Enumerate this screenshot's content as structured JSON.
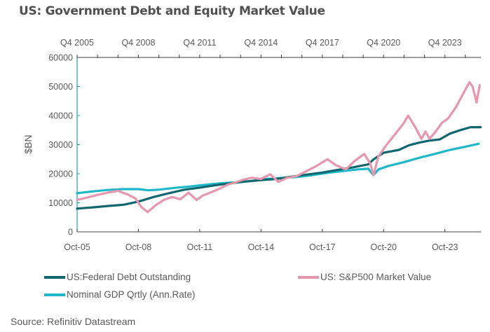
{
  "title": "US: Government Debt and Equity Market Value",
  "source": "Source: Refinitiv Datastream",
  "colors": {
    "federal_debt": "#11676e",
    "sp500": "#e597ae",
    "gdp": "#1fb8c8",
    "axis": "#404040",
    "y_axis_line": "#2a9aa6"
  },
  "chart_data": {
    "type": "line",
    "title": "US: Government Debt and Equity Market Value",
    "xlabel": "",
    "ylabel": "$BN",
    "ylim": [
      0,
      60000
    ],
    "yticks": [
      0,
      10000,
      20000,
      30000,
      40000,
      50000,
      60000
    ],
    "xlim_years": [
      2005.75,
      2025.5
    ],
    "bottom_x_ticks": [
      {
        "label": "Oct-05",
        "year": 2005.75
      },
      {
        "label": "Oct-08",
        "year": 2008.75
      },
      {
        "label": "Oct-11",
        "year": 2011.75
      },
      {
        "label": "Oct-14",
        "year": 2014.75
      },
      {
        "label": "Oct-17",
        "year": 2017.75
      },
      {
        "label": "Oct-20",
        "year": 2020.75
      },
      {
        "label": "Oct-23",
        "year": 2023.75
      }
    ],
    "top_x_ticks": [
      {
        "label": "Q4 2005",
        "year": 2005.75
      },
      {
        "label": "Q4 2008",
        "year": 2008.75
      },
      {
        "label": "Q4 2011",
        "year": 2011.75
      },
      {
        "label": "Q4 2014",
        "year": 2014.75
      },
      {
        "label": "Q4 2017",
        "year": 2017.75
      },
      {
        "label": "Q4 2020",
        "year": 2020.75
      },
      {
        "label": "Q4 2023",
        "year": 2023.75
      }
    ],
    "top_minor_tick_step_years": 1,
    "grid": false,
    "legend_position": "bottom",
    "series": [
      {
        "name": "US:Federal Debt Outstanding",
        "color_key": "federal_debt",
        "x": [
          2005.75,
          2006.5,
          2007.25,
          2008.0,
          2008.75,
          2009.5,
          2010.25,
          2011.0,
          2011.75,
          2012.5,
          2013.25,
          2014.0,
          2014.75,
          2015.5,
          2016.25,
          2017.0,
          2017.75,
          2018.5,
          2019.25,
          2020.0,
          2020.25,
          2020.75,
          2021.5,
          2022.0,
          2022.5,
          2023.0,
          2023.5,
          2024.0,
          2024.5,
          2025.0,
          2025.5
        ],
        "values": [
          8000,
          8400,
          8900,
          9300,
          10400,
          12000,
          13300,
          14500,
          15200,
          16000,
          16700,
          17300,
          17800,
          18200,
          19000,
          19700,
          20400,
          21300,
          22200,
          23200,
          24900,
          27200,
          28200,
          29800,
          30700,
          31400,
          31800,
          33800,
          35000,
          36000,
          36000
        ]
      },
      {
        "name": "US: S&P500 Market Value",
        "color_key": "sp500",
        "x": [
          2005.75,
          2006.25,
          2006.75,
          2007.25,
          2007.75,
          2008.25,
          2008.6,
          2008.9,
          2009.2,
          2009.6,
          2010.0,
          2010.4,
          2010.8,
          2011.2,
          2011.6,
          2011.9,
          2012.3,
          2012.7,
          2013.1,
          2013.5,
          2013.9,
          2014.3,
          2014.75,
          2015.2,
          2015.6,
          2016.0,
          2016.5,
          2017.0,
          2017.5,
          2018.0,
          2018.4,
          2018.9,
          2019.3,
          2019.8,
          2020.1,
          2020.25,
          2020.5,
          2020.9,
          2021.3,
          2021.7,
          2021.95,
          2022.3,
          2022.6,
          2022.8,
          2023.0,
          2023.3,
          2023.6,
          2023.9,
          2024.3,
          2024.6,
          2024.95,
          2025.1,
          2025.3,
          2025.45
        ],
        "values": [
          11000,
          11800,
          12700,
          13500,
          14100,
          12800,
          11500,
          8500,
          6800,
          9200,
          11000,
          12000,
          11200,
          13500,
          11000,
          12500,
          13600,
          14800,
          16200,
          17000,
          18000,
          18600,
          18200,
          19800,
          17200,
          18500,
          19200,
          21000,
          22800,
          25000,
          23000,
          21500,
          24200,
          26800,
          23500,
          19500,
          26000,
          30000,
          33500,
          37000,
          40000,
          36000,
          32000,
          34500,
          32000,
          34500,
          37500,
          39000,
          43000,
          47000,
          51500,
          50000,
          44500,
          50500
        ]
      },
      {
        "name": "Nominal GDP Qrtly (Ann.Rate)",
        "color_key": "gdp",
        "x": [
          2005.75,
          2006.5,
          2007.25,
          2008.0,
          2008.75,
          2009.25,
          2009.75,
          2010.5,
          2011.25,
          2012.0,
          2012.75,
          2013.5,
          2014.25,
          2015.0,
          2015.75,
          2016.5,
          2017.25,
          2018.0,
          2018.75,
          2019.5,
          2020.0,
          2020.25,
          2020.5,
          2021.0,
          2021.75,
          2022.5,
          2023.25,
          2024.0,
          2024.75,
          2025.4
        ],
        "values": [
          13300,
          13900,
          14400,
          14700,
          14700,
          14300,
          14500,
          15100,
          15600,
          16200,
          16700,
          17000,
          17500,
          18200,
          18500,
          18900,
          19500,
          20300,
          20900,
          21500,
          21700,
          19500,
          21500,
          22700,
          24000,
          25500,
          26800,
          28200,
          29300,
          30300
        ]
      }
    ]
  },
  "legend": [
    {
      "label": "US:Federal Debt Outstanding",
      "color_key": "federal_debt"
    },
    {
      "label": "US: S&P500 Market Value",
      "color_key": "sp500"
    },
    {
      "label": "Nominal GDP Qrtly (Ann.Rate)",
      "color_key": "gdp"
    }
  ]
}
